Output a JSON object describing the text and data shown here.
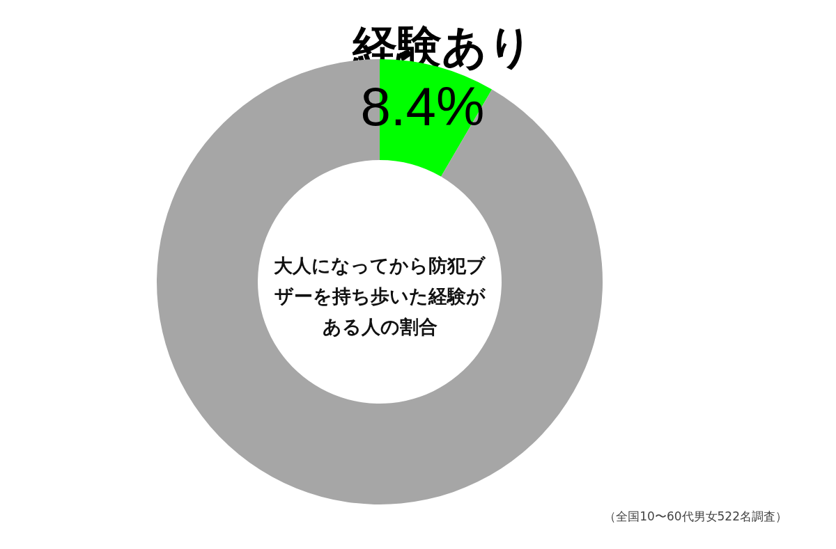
{
  "chart_data": {
    "type": "donut",
    "title": "大人になってから防犯ブザーを持ち歩いた経験がある人の割合",
    "categories": [
      "経験あり",
      null
    ],
    "values": [
      8.4,
      91.6
    ],
    "colors": [
      "#00ff00",
      "#a6a6a6"
    ],
    "value_labels": [
      "8.4%",
      null
    ],
    "legend": false,
    "annotations": [
      "（全国10〜60代男女522名調査）"
    ]
  }
}
